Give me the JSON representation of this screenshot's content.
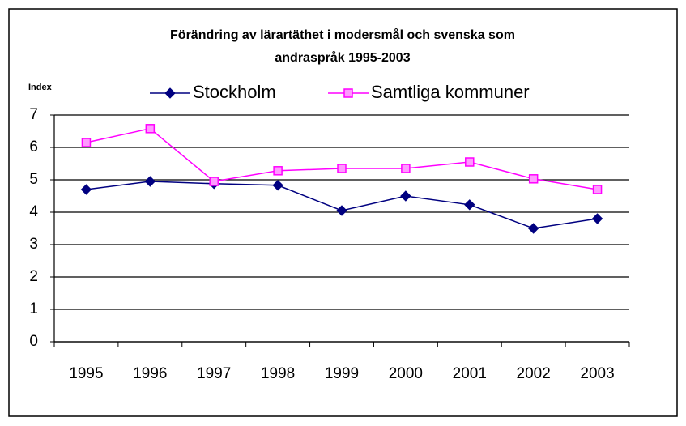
{
  "chart_data": {
    "type": "line",
    "title": [
      "Förändring av lärartäthet i modersmål och svenska som",
      "andraspråk 1995-2003"
    ],
    "y_axis_label": "Index",
    "categories": [
      "1995",
      "1996",
      "1997",
      "1998",
      "1999",
      "2000",
      "2001",
      "2002",
      "2003"
    ],
    "series": [
      {
        "name": "Stockholm",
        "color": "#000080",
        "marker": "diamond",
        "values": [
          4.7,
          4.95,
          4.88,
          4.83,
          4.05,
          4.5,
          4.23,
          3.5,
          3.8
        ]
      },
      {
        "name": "Samtliga kommuner",
        "color": "#ff00ff",
        "marker": "square",
        "values": [
          6.15,
          6.58,
          4.95,
          5.28,
          5.35,
          5.35,
          5.55,
          5.03,
          4.7
        ]
      }
    ],
    "ylim": [
      0,
      7
    ],
    "yticks": [
      0,
      1,
      2,
      3,
      4,
      5,
      6,
      7
    ],
    "grid": true,
    "legend": "top"
  }
}
